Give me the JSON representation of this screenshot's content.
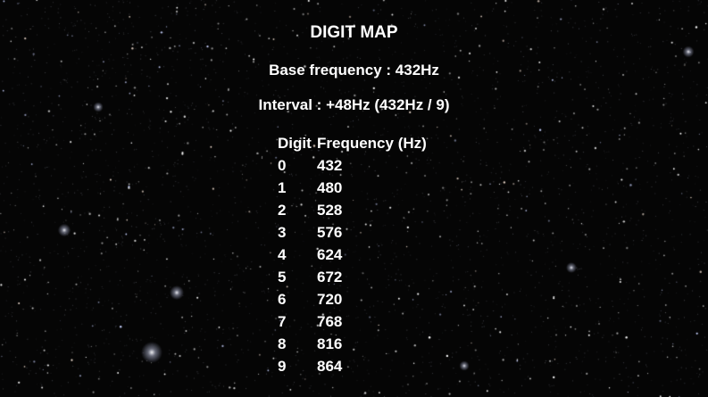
{
  "title": "DIGIT MAP",
  "base_frequency": "Base frequency : 432Hz",
  "interval": "Interval : +48Hz (432Hz / 9)",
  "table": {
    "headers": [
      "Digit",
      "Frequency (Hz)"
    ],
    "rows": [
      {
        "digit": "0",
        "frequency": "432"
      },
      {
        "digit": "1",
        "frequency": "480"
      },
      {
        "digit": "2",
        "frequency": "528"
      },
      {
        "digit": "3",
        "frequency": "576"
      },
      {
        "digit": "4",
        "frequency": "624"
      },
      {
        "digit": "5",
        "frequency": "672"
      },
      {
        "digit": "6",
        "frequency": "720"
      },
      {
        "digit": "7",
        "frequency": "768"
      },
      {
        "digit": "8",
        "frequency": "816"
      },
      {
        "digit": "9",
        "frequency": "864"
      }
    ]
  },
  "colors": {
    "background": "#050505",
    "text": "#ffffff",
    "stars": "#ffffff"
  }
}
